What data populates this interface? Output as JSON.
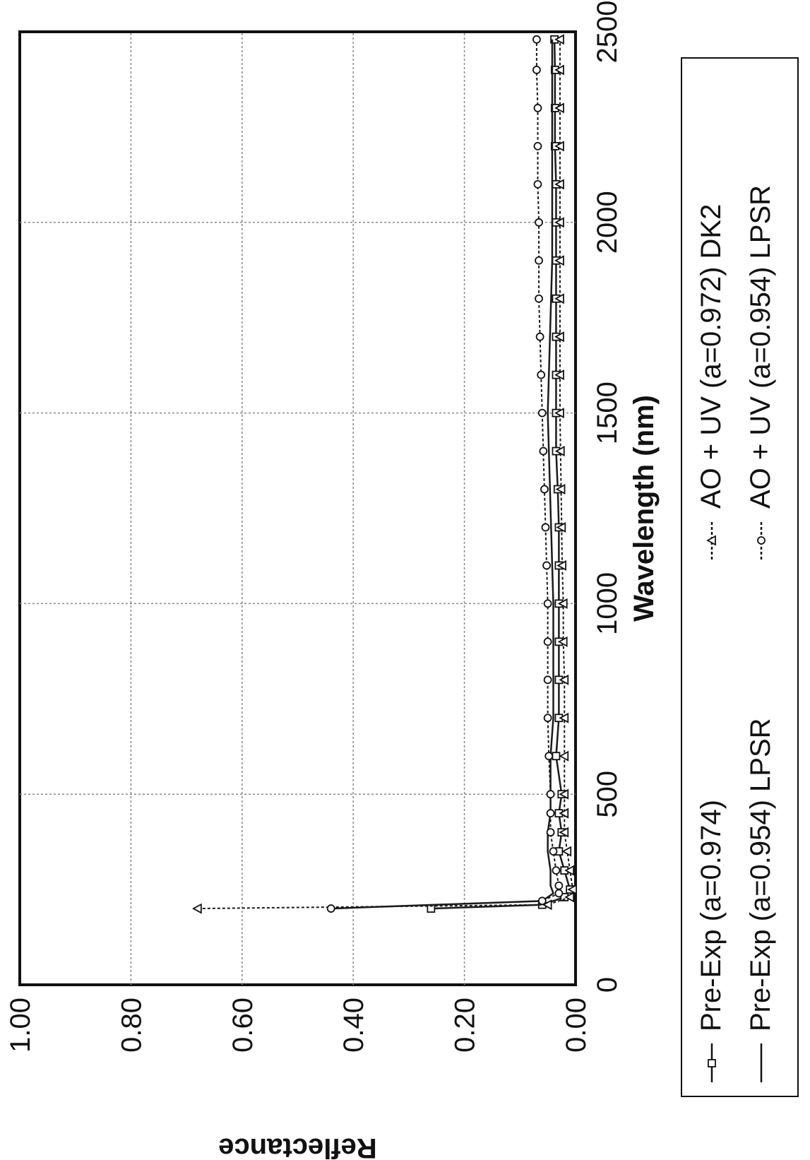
{
  "chart_data": {
    "type": "line",
    "orientation_note": "rotated",
    "xlabel": "Wavelength (nm)",
    "ylabel": "Reflectance",
    "xlim": [
      0,
      2500
    ],
    "ylim": [
      0,
      1.0
    ],
    "x_ticks": [
      "0",
      "500",
      "1000",
      "1500",
      "2000",
      "2500"
    ],
    "y_ticks": [
      "0.00",
      "0.20",
      "0.40",
      "0.60",
      "0.80",
      "1.00"
    ],
    "grid": true,
    "legend_position": "below",
    "colors": {
      "line": "#1a1a1a",
      "grid": "#888888",
      "frame": "#111111"
    },
    "series": [
      {
        "name": "Pre-Exp (a=0.974)",
        "marker": "square",
        "line": "solid",
        "x": [
          200,
          210,
          230,
          250,
          300,
          350,
          400,
          450,
          500,
          600,
          700,
          800,
          900,
          1000,
          1100,
          1200,
          1300,
          1400,
          1500,
          1600,
          1700,
          1800,
          1900,
          2000,
          2100,
          2200,
          2300,
          2400,
          2480
        ],
        "y": [
          0.26,
          0.06,
          0.02,
          0.01,
          0.02,
          0.03,
          0.025,
          0.03,
          0.025,
          0.035,
          0.03,
          0.03,
          0.03,
          0.03,
          0.03,
          0.03,
          0.032,
          0.035,
          0.035,
          0.035,
          0.035,
          0.035,
          0.035,
          0.035,
          0.035,
          0.037,
          0.037,
          0.037,
          0.038
        ]
      },
      {
        "name": "Pre-Exp (a=0.954) LPSR",
        "marker": "none",
        "line": "solid",
        "x": [
          200,
          220,
          240,
          260,
          300,
          350,
          400,
          450,
          500,
          600,
          700,
          800,
          900,
          1000,
          1100,
          1200,
          1300,
          1400,
          1500,
          1600,
          1700,
          1800,
          1900,
          2000,
          2100,
          2200,
          2300,
          2400,
          2480
        ],
        "y": [
          0.44,
          0.06,
          0.04,
          0.045,
          0.045,
          0.05,
          0.05,
          0.045,
          0.045,
          0.045,
          0.04,
          0.04,
          0.04,
          0.04,
          0.042,
          0.044,
          0.046,
          0.048,
          0.05,
          0.048,
          0.046,
          0.044,
          0.042,
          0.042,
          0.042,
          0.042,
          0.042,
          0.042,
          0.042
        ]
      },
      {
        "name": "AO + UV (a=0.972) DK2",
        "marker": "triangle",
        "line": "dotted",
        "x": [
          200,
          210,
          230,
          250,
          300,
          350,
          400,
          450,
          500,
          600,
          700,
          800,
          900,
          1000,
          1100,
          1200,
          1300,
          1400,
          1500,
          1600,
          1700,
          1800,
          1900,
          2000,
          2100,
          2200,
          2300,
          2400,
          2480
        ],
        "y": [
          0.68,
          0.05,
          0.01,
          0.005,
          0.01,
          0.015,
          0.02,
          0.02,
          0.02,
          0.02,
          0.02,
          0.02,
          0.022,
          0.022,
          0.024,
          0.025,
          0.026,
          0.027,
          0.028,
          0.028,
          0.028,
          0.028,
          0.028,
          0.028,
          0.028,
          0.028,
          0.028,
          0.028,
          0.028
        ]
      },
      {
        "name": "AO + UV (a=0.954) LPSR",
        "marker": "circle",
        "line": "dotted",
        "x": [
          200,
          220,
          240,
          260,
          300,
          350,
          400,
          450,
          500,
          600,
          700,
          800,
          900,
          1000,
          1100,
          1200,
          1300,
          1400,
          1500,
          1600,
          1700,
          1800,
          1900,
          2000,
          2100,
          2200,
          2300,
          2400,
          2480
        ],
        "y": [
          0.44,
          0.06,
          0.03,
          0.03,
          0.035,
          0.04,
          0.045,
          0.045,
          0.045,
          0.048,
          0.05,
          0.05,
          0.05,
          0.05,
          0.052,
          0.054,
          0.056,
          0.058,
          0.06,
          0.062,
          0.064,
          0.066,
          0.066,
          0.066,
          0.068,
          0.068,
          0.068,
          0.07,
          0.07
        ]
      }
    ]
  }
}
